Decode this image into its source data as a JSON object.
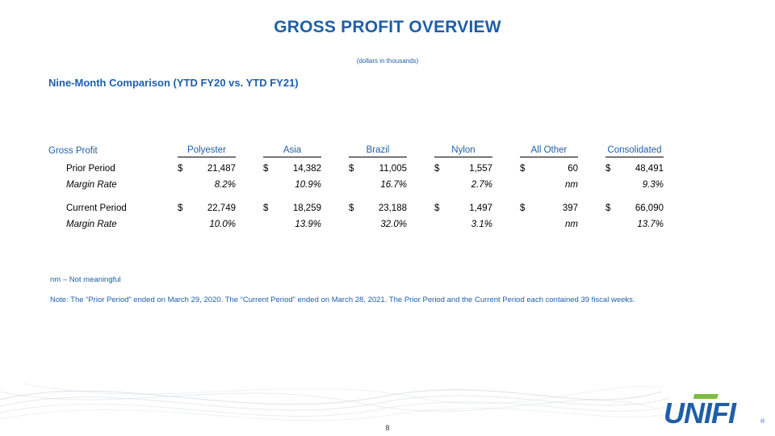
{
  "header": {
    "title": "GROSS PROFIT OVERVIEW",
    "subtitle": "(dollars in thousands)",
    "section_title": "Nine-Month Comparison (YTD FY20 vs. YTD FY21)"
  },
  "table": {
    "row_header": "Gross Profit",
    "columns": [
      "Polyester",
      "Asia",
      "Brazil",
      "Nylon",
      "All Other",
      "Consolidated"
    ],
    "currency_symbol": "$",
    "rows": [
      {
        "label": "Prior Period",
        "values": [
          "21,487",
          "14,382",
          "11,005",
          "1,557",
          "60",
          "48,491"
        ]
      },
      {
        "label": "Margin Rate",
        "values": [
          "8.2%",
          "10.9%",
          "16.7%",
          "2.7%",
          "nm",
          "9.3%"
        ]
      },
      {
        "label": "Current Period",
        "values": [
          "22,749",
          "18,259",
          "23,188",
          "1,497",
          "397",
          "66,090"
        ]
      },
      {
        "label": "Margin Rate",
        "values": [
          "10.0%",
          "13.9%",
          "32.0%",
          "3.1%",
          "nm",
          "13.7%"
        ]
      }
    ]
  },
  "footnotes": {
    "nm": "nm – Not meaningful",
    "note": "Note: The “Prior Period” ended on March 29, 2020. The “Current Period” ended on March 28, 2021.  The Prior Period and the Current Period each contained 39 fiscal weeks."
  },
  "page_number": "8",
  "logo": {
    "text": "UNIFI",
    "registered": "®",
    "color": "#1f5fa8",
    "accent": "#7dbb42"
  },
  "colors": {
    "brand_blue": "#1f5fa8"
  }
}
